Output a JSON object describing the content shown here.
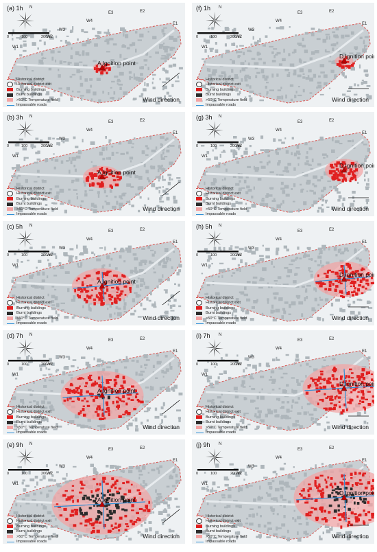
{
  "legend": {
    "historical_district": "Historical district",
    "exit": "Historical district exit",
    "burning": "Burning buildings",
    "burnt": "Burnt buildings",
    "temp": ">50°C Temperature field",
    "impassable": "Impassable roads"
  },
  "common": {
    "wind": "Wind direction",
    "ignition": "Ignition point",
    "north": "N",
    "scale0": "0",
    "scale100": "100",
    "scale200": "200 m",
    "exits": [
      "W1",
      "W2",
      "W3",
      "W4",
      "E3",
      "E2",
      "E1"
    ]
  },
  "colors": {
    "burning": "#e02020",
    "burnt": "#2b2b2b",
    "temp": "#f4a3a3",
    "road": "#2e8fd6",
    "district": "#d9534f",
    "map": "#c9cfd3"
  },
  "panels": [
    {
      "label": "(a) 1h",
      "point": "A",
      "spread": 0.08,
      "burnt": 0.0
    },
    {
      "label": "(f) 1h",
      "point": "D",
      "spread": 0.08,
      "burnt": 0.0
    },
    {
      "label": "(b) 3h",
      "point": "A",
      "spread": 0.3,
      "burnt": 0.0
    },
    {
      "label": "(g) 3h",
      "point": "D",
      "spread": 0.3,
      "burnt": 0.0
    },
    {
      "label": "(c) 5h",
      "point": "A",
      "spread": 0.55,
      "burnt": 0.0
    },
    {
      "label": "(h) 5h",
      "point": "D",
      "spread": 0.55,
      "burnt": 0.0
    },
    {
      "label": "(d) 7h",
      "point": "A",
      "spread": 0.8,
      "burnt": 0.12
    },
    {
      "label": "(i) 7h",
      "point": "D",
      "spread": 0.8,
      "burnt": 0.1
    },
    {
      "label": "(e) 9h",
      "point": "A",
      "spread": 1.0,
      "burnt": 0.35
    },
    {
      "label": "(j) 9h",
      "point": "D",
      "spread": 1.0,
      "burnt": 0.3
    }
  ]
}
